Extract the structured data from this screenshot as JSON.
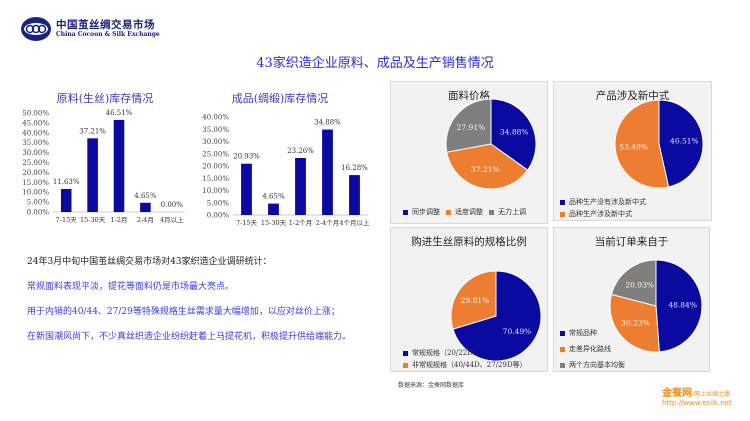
{
  "header": {
    "logo_cn": "中国茧丝绸交易市场",
    "logo_en": "China Cocoon & Silk Exchange",
    "title": "43家织造企业原料、成品及生产销售情况"
  },
  "colors": {
    "blue": "#0a0aa0",
    "orange": "#ed7d31",
    "gray": "#7f7f7f",
    "title": "#2b2bd6"
  },
  "chart_data": [
    {
      "type": "bar",
      "title": "原料(生丝)库存情况",
      "categories": [
        "7-15天",
        "15-30天",
        "1-2月",
        "2-4月",
        "4月以上"
      ],
      "values": [
        11.63,
        37.21,
        46.51,
        4.65,
        0.0
      ],
      "data_labels": [
        "11.63%",
        "37.21%",
        "46.51%",
        "4.65%",
        "0.00%"
      ],
      "yticks": [
        "0.00%",
        "5.00%",
        "10.00%",
        "15.00%",
        "20.00%",
        "25.00%",
        "30.00%",
        "35.00%",
        "40.00%",
        "45.00%",
        "50.00%"
      ],
      "ylim": [
        0,
        50
      ],
      "grid": false,
      "color": "#0a0aa0"
    },
    {
      "type": "bar",
      "title": "成品(绸缎)库存情况",
      "categories": [
        "7-15天",
        "15-30天",
        "1-2个月",
        "2-4个月",
        "4个月以上"
      ],
      "values": [
        20.93,
        4.65,
        23.26,
        34.88,
        16.28
      ],
      "data_labels": [
        "20.93%",
        "4.65%",
        "23.26%",
        "34.88%",
        "16.28%"
      ],
      "yticks": [
        "0.00%",
        "5.00%",
        "10.00%",
        "15.00%",
        "20.00%",
        "25.00%",
        "30.00%",
        "35.00%",
        "40.00%"
      ],
      "ylim": [
        0,
        40
      ],
      "grid": false,
      "color": "#0a0aa0"
    },
    {
      "type": "pie",
      "title": "面料价格",
      "labels": [
        "同步调整",
        "适度调整",
        "无力上调"
      ],
      "values": [
        34.88,
        37.21,
        27.91
      ],
      "data_labels": [
        "34.88%",
        "37.21%",
        "27.91%"
      ],
      "colors": [
        "#0a0aa0",
        "#ed7d31",
        "#7f7f7f"
      ],
      "legend": "bottom"
    },
    {
      "type": "pie",
      "title": "产品涉及新中式",
      "labels": [
        "品种生产没有涉及新中式",
        "品种生产涉及新中式"
      ],
      "values": [
        46.51,
        53.49
      ],
      "data_labels": [
        "46.51%",
        "53.49%"
      ],
      "colors": [
        "#0a0aa0",
        "#ed7d31"
      ],
      "legend": "bottom-left"
    },
    {
      "type": "pie",
      "title": "购进生丝原料的规格比例",
      "labels": [
        "常规规格（20/22D）",
        "非常规规格（40/44D、27/29D等）"
      ],
      "values": [
        70.49,
        29.81
      ],
      "data_labels": [
        "70.49%",
        "29.81%"
      ],
      "colors": [
        "#0a0aa0",
        "#ed7d31"
      ],
      "legend": "bottom-left"
    },
    {
      "type": "pie",
      "title": "当前订单来自于",
      "labels": [
        "常规品种",
        "走差异化路线",
        "两个方向基本均衡"
      ],
      "values": [
        48.84,
        30.23,
        20.93
      ],
      "data_labels": [
        "48.84%",
        "30.23%",
        "20.93%"
      ],
      "colors": [
        "#0a0aa0",
        "#ed7d31",
        "#7f7f7f"
      ],
      "legend": "left"
    }
  ],
  "notes": [
    "24年3月中旬中国茧丝绸交易市场对43家织造企业调研统计：",
    "常规面料表现平淡，提花等面料仍是市场最大亮点。",
    "用于内销的40/44、27/29等特殊规格生丝需求量大幅增加，以应对丝价上涨；",
    "在新国潮风尚下，不少真丝织造企业纷纷赶着上马提花机，积极提升供给端能力。"
  ],
  "footer": {
    "source": "数据来源：金蚕网数据库",
    "esilk_name": "金蚕网",
    "esilk_slogan": "-网上丝绸之路",
    "esilk_url": "http://www.esilk.net"
  }
}
